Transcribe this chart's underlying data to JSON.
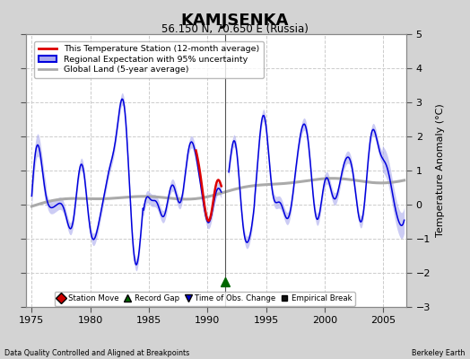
{
  "title": "KAMJSENKA",
  "subtitle": "56.150 N, 70.650 E (Russia)",
  "ylabel": "Temperature Anomaly (°C)",
  "xlabel_note": "Data Quality Controlled and Aligned at Breakpoints",
  "source_note": "Berkeley Earth",
  "xlim": [
    1974.5,
    2007.0
  ],
  "ylim": [
    -3.0,
    5.0
  ],
  "yticks": [
    -3,
    -2,
    -1,
    0,
    1,
    2,
    3,
    4,
    5
  ],
  "xticks": [
    1975,
    1980,
    1985,
    1990,
    1995,
    2000,
    2005
  ],
  "background_color": "#d3d3d3",
  "plot_bg_color": "#ffffff",
  "grid_color": "#cccccc",
  "gap_x": 1991.5,
  "record_gap_x": 1991.5,
  "record_gap_y": -2.25,
  "blue_line_color": "#0000dd",
  "blue_fill_color": "#aaaaee",
  "red_line_color": "#dd0000",
  "gray_line_color": "#aaaaaa",
  "legend_items": [
    {
      "label": "This Temperature Station (12-month average)",
      "color": "#dd0000",
      "lw": 2
    },
    {
      "label": "Regional Expectation with 95% uncertainty",
      "color": "#0000dd",
      "lw": 2
    },
    {
      "label": "Global Land (5-year average)",
      "color": "#aaaaaa",
      "lw": 2
    }
  ],
  "marker_legend": [
    {
      "label": "Station Move",
      "color": "#cc0000",
      "marker": "D"
    },
    {
      "label": "Record Gap",
      "color": "#006600",
      "marker": "^"
    },
    {
      "label": "Time of Obs. Change",
      "color": "#0000cc",
      "marker": "v"
    },
    {
      "label": "Empirical Break",
      "color": "#111111",
      "marker": "s"
    }
  ]
}
